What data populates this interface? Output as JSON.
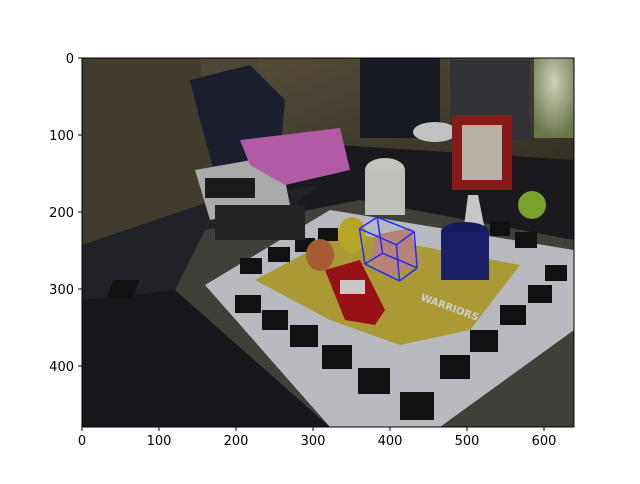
{
  "figure": {
    "x_ticks": [
      "0",
      "100",
      "200",
      "300",
      "400",
      "500",
      "600"
    ],
    "y_ticks": [
      "0",
      "100",
      "200",
      "300",
      "400"
    ],
    "x_range": [
      0,
      640
    ],
    "y_range": [
      480,
      0
    ],
    "image_content": "photo of a cluttered desk scene with a fiducial-marker board, toy car, pink toy, mug, bottle and equipment",
    "board_text": "WARRIORS",
    "cube_color": "#1f2cff"
  },
  "annotation": {
    "cube_vertices": [
      [
        361,
        222
      ],
      [
        384,
        207
      ],
      [
        432,
        226
      ],
      [
        409,
        243
      ],
      [
        368,
        268
      ],
      [
        391,
        254
      ],
      [
        436,
        273
      ],
      [
        413,
        290
      ]
    ]
  }
}
